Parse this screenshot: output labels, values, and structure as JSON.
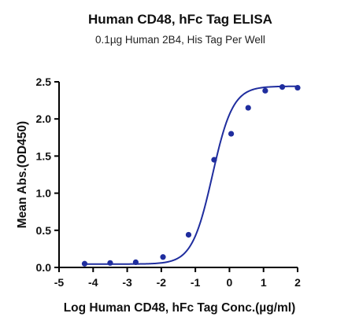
{
  "chart_data": {
    "type": "scatter",
    "title": "Human CD48, hFc Tag ELISA",
    "subtitle": "0.1µg Human 2B4, His Tag Per Well",
    "xlabel": "Log Human CD48, hFc Tag Conc.(µg/ml)",
    "ylabel": "Mean Abs.(OD450)",
    "xlim": [
      -5,
      2
    ],
    "ylim": [
      0,
      2.5
    ],
    "x_ticks": [
      -5,
      -4,
      -3,
      -2,
      -1,
      0,
      1,
      2
    ],
    "y_ticks": [
      0.0,
      0.5,
      1.0,
      1.5,
      2.0,
      2.5
    ],
    "x_tick_labels": [
      "-5",
      "-4",
      "-3",
      "-2",
      "-1",
      "0",
      "1",
      "2"
    ],
    "y_tick_labels": [
      "0.0",
      "0.5",
      "1.0",
      "1.5",
      "2.0",
      "2.5"
    ],
    "series": [
      {
        "points": [
          {
            "x": -4.25,
            "y": 0.05
          },
          {
            "x": -3.5,
            "y": 0.06
          },
          {
            "x": -2.75,
            "y": 0.07
          },
          {
            "x": -1.95,
            "y": 0.14
          },
          {
            "x": -1.2,
            "y": 0.44
          },
          {
            "x": -0.45,
            "y": 1.45
          },
          {
            "x": 0.05,
            "y": 1.8
          },
          {
            "x": 0.55,
            "y": 2.15
          },
          {
            "x": 1.05,
            "y": 2.38
          },
          {
            "x": 1.55,
            "y": 2.43
          },
          {
            "x": 2.0,
            "y": 2.42
          }
        ],
        "fit": {
          "model": "4PL",
          "bottom": 0.045,
          "top": 2.44,
          "logEC50": -0.5,
          "hill": 1.45
        },
        "color": "#1f2d9e"
      }
    ],
    "grid": false,
    "legend": "none"
  }
}
